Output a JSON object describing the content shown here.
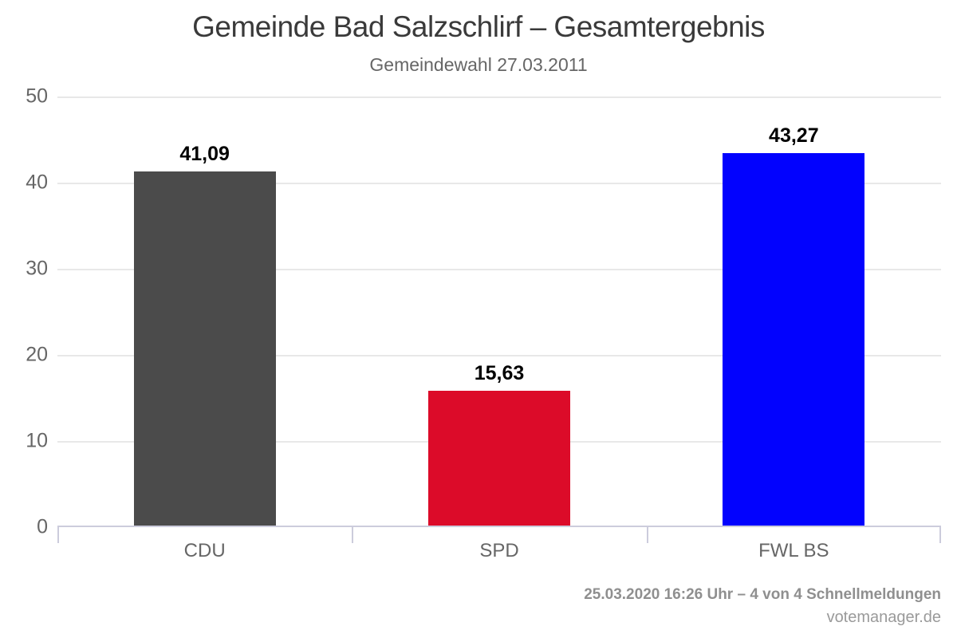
{
  "page": {
    "title": "Gemeinde Bad Salzschlirf – Gesamtergebnis",
    "subtitle": "Gemeindewahl 27.03.2011"
  },
  "footer": {
    "status_line": "25.03.2020 16:26 Uhr – 4 von 4 Schnellmeldungen",
    "brand": "votemanager.de"
  },
  "colors": {
    "title_text": "#3a3a3a",
    "subtitle_text": "#666666",
    "axis_line": "#ccccdc",
    "gridline": "#e8e8e8",
    "axis_label_text": "#666666",
    "value_label_text": "#000000",
    "footer_text": "#8f8f8f"
  },
  "chart_data": {
    "type": "bar",
    "title": "Gemeinde Bad Salzschlirf – Gesamtergebnis",
    "subtitle": "Gemeindewahl 27.03.2011",
    "categories": [
      "CDU",
      "SPD",
      "FWL BS"
    ],
    "values": [
      41.09,
      15.63,
      43.27
    ],
    "value_labels": [
      "41,09",
      "15,63",
      "43,27"
    ],
    "bar_colors": [
      "#4b4b4b",
      "#dc0b29",
      "#0202fe"
    ],
    "unit": "percent",
    "xlabel": "",
    "ylabel": "",
    "ylim": [
      0,
      50
    ],
    "yticks": [
      0,
      10,
      20,
      30,
      40,
      50
    ],
    "grid": true,
    "legend": false
  }
}
